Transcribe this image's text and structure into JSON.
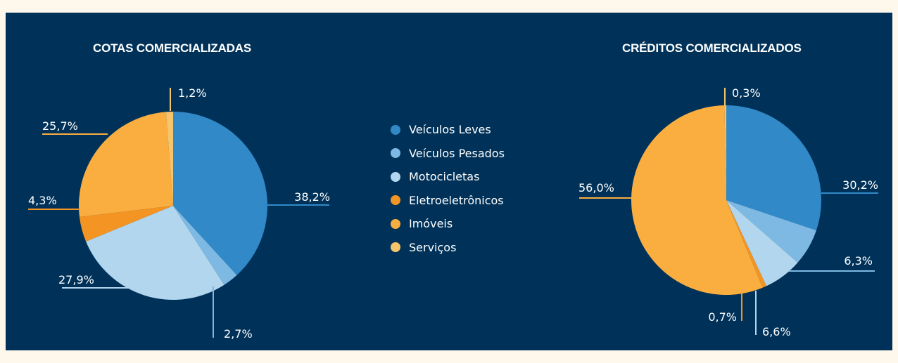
{
  "colors": {
    "page_background": "#fdf7ec",
    "panel": "#003259",
    "text": "#ffffff"
  },
  "legend": [
    {
      "label": "Veículos Leves",
      "color": "#3189c8"
    },
    {
      "label": "Veículos Pesados",
      "color": "#7db9e2"
    },
    {
      "label": "Motocicletas",
      "color": "#b1d6ee"
    },
    {
      "label": "Eletroeletrônicos",
      "color": "#f39423"
    },
    {
      "label": "Imóveis",
      "color": "#fbae40"
    },
    {
      "label": "Serviços",
      "color": "#f6c56b"
    }
  ],
  "chart_data": [
    {
      "type": "pie",
      "title": "COTAS COMERCIALIZADAS",
      "legend_position": "center",
      "slices": [
        {
          "category": "Veículos Leves",
          "value": 38.2,
          "label": "38,2%"
        },
        {
          "category": "Veículos Pesados",
          "value": 2.7,
          "label": "2,7%"
        },
        {
          "category": "Motocicletas",
          "value": 27.9,
          "label": "27,9%"
        },
        {
          "category": "Eletroeletrônicos",
          "value": 4.3,
          "label": "4,3%"
        },
        {
          "category": "Imóveis",
          "value": 25.7,
          "label": "25,7%"
        },
        {
          "category": "Serviços",
          "value": 1.2,
          "label": "1,2%"
        }
      ]
    },
    {
      "type": "pie",
      "title": "CRÉDITOS COMERCIALIZADOS",
      "legend_position": "center",
      "slices": [
        {
          "category": "Veículos Leves",
          "value": 30.2,
          "label": "30,2%"
        },
        {
          "category": "Veículos Pesados",
          "value": 6.3,
          "label": "6,3%"
        },
        {
          "category": "Motocicletas",
          "value": 6.6,
          "label": "6,6%"
        },
        {
          "category": "Eletroeletrônicos",
          "value": 0.7,
          "label": "0,7%"
        },
        {
          "category": "Imóveis",
          "value": 56.0,
          "label": "56,0%"
        },
        {
          "category": "Serviços",
          "value": 0.3,
          "label": "0,3%"
        }
      ]
    }
  ]
}
